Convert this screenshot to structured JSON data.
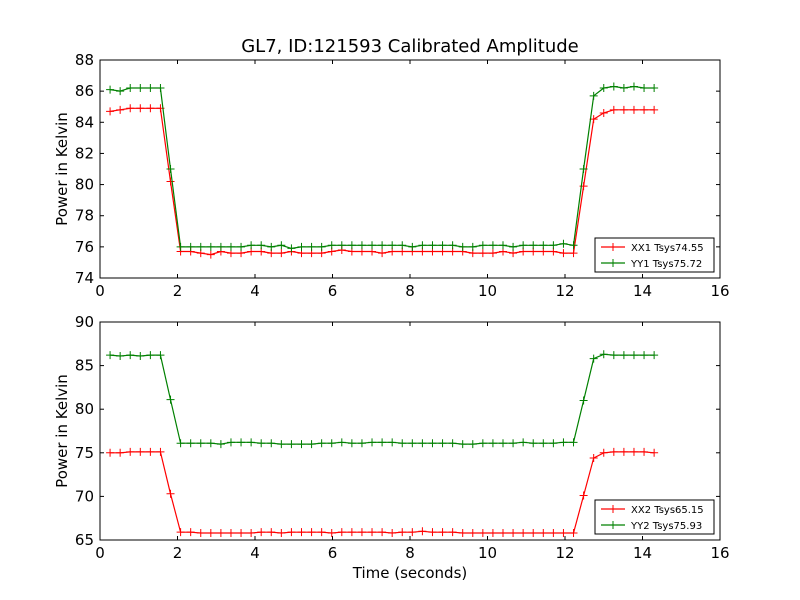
{
  "figure_title": "GL7, ID:121593 Calibrated Amplitude",
  "chart_data": [
    {
      "type": "line",
      "title": "GL7, ID:121593 Calibrated Amplitude",
      "xlabel": "",
      "ylabel": "Power in Kelvin",
      "xlim": [
        0,
        16
      ],
      "ylim": [
        74,
        88
      ],
      "xticks": [
        "0",
        "2",
        "4",
        "6",
        "8",
        "10",
        "12",
        "14",
        "16"
      ],
      "yticks": [
        "74",
        "76",
        "78",
        "80",
        "82",
        "84",
        "86",
        "88"
      ],
      "grid": false,
      "legend": "lower-right",
      "x": [
        0.26,
        0.52,
        0.78,
        1.04,
        1.3,
        1.56,
        1.82,
        2.08,
        2.34,
        2.6,
        2.86,
        3.12,
        3.38,
        3.64,
        3.9,
        4.16,
        4.42,
        4.68,
        4.94,
        5.2,
        5.46,
        5.72,
        5.98,
        6.24,
        6.5,
        6.76,
        7.02,
        7.28,
        7.54,
        7.8,
        8.06,
        8.32,
        8.58,
        8.84,
        9.1,
        9.36,
        9.62,
        9.88,
        10.14,
        10.4,
        10.66,
        10.92,
        11.18,
        11.44,
        11.7,
        11.96,
        12.22,
        12.48,
        12.74,
        13.0,
        13.26,
        13.52,
        13.78,
        14.04,
        14.3
      ],
      "series": [
        {
          "name": "XX1 Tsys74.55",
          "color": "#ff0000",
          "values": [
            84.7,
            84.8,
            84.9,
            84.9,
            84.9,
            84.9,
            80.2,
            75.7,
            75.7,
            75.6,
            75.5,
            75.7,
            75.6,
            75.6,
            75.7,
            75.7,
            75.6,
            75.6,
            75.7,
            75.6,
            75.6,
            75.6,
            75.7,
            75.8,
            75.7,
            75.7,
            75.7,
            75.6,
            75.7,
            75.7,
            75.7,
            75.7,
            75.7,
            75.7,
            75.7,
            75.7,
            75.6,
            75.6,
            75.6,
            75.7,
            75.6,
            75.7,
            75.7,
            75.7,
            75.7,
            75.6,
            75.6,
            79.9,
            84.2,
            84.6,
            84.8,
            84.8,
            84.8,
            84.8,
            84.8
          ]
        },
        {
          "name": "YY1 Tsys75.72",
          "color": "#008000",
          "values": [
            86.1,
            86.0,
            86.2,
            86.2,
            86.2,
            86.2,
            81.0,
            76.0,
            76.0,
            76.0,
            76.0,
            76.0,
            76.0,
            76.0,
            76.1,
            76.1,
            76.0,
            76.1,
            75.9,
            76.0,
            76.0,
            76.0,
            76.1,
            76.1,
            76.1,
            76.1,
            76.1,
            76.1,
            76.1,
            76.1,
            76.0,
            76.1,
            76.1,
            76.1,
            76.1,
            76.0,
            76.0,
            76.1,
            76.1,
            76.1,
            76.0,
            76.1,
            76.1,
            76.1,
            76.1,
            76.2,
            76.1,
            81.0,
            85.7,
            86.2,
            86.3,
            86.2,
            86.3,
            86.2,
            86.2
          ]
        }
      ]
    },
    {
      "type": "line",
      "title": "",
      "xlabel": "Time (seconds)",
      "ylabel": "Power in Kelvin",
      "xlim": [
        0,
        16
      ],
      "ylim": [
        65,
        90
      ],
      "xticks": [
        "0",
        "2",
        "4",
        "6",
        "8",
        "10",
        "12",
        "14",
        "16"
      ],
      "yticks": [
        "65",
        "70",
        "75",
        "80",
        "85",
        "90"
      ],
      "grid": false,
      "legend": "lower-right",
      "x": [
        0.26,
        0.52,
        0.78,
        1.04,
        1.3,
        1.56,
        1.82,
        2.08,
        2.34,
        2.6,
        2.86,
        3.12,
        3.38,
        3.64,
        3.9,
        4.16,
        4.42,
        4.68,
        4.94,
        5.2,
        5.46,
        5.72,
        5.98,
        6.24,
        6.5,
        6.76,
        7.02,
        7.28,
        7.54,
        7.8,
        8.06,
        8.32,
        8.58,
        8.84,
        9.1,
        9.36,
        9.62,
        9.88,
        10.14,
        10.4,
        10.66,
        10.92,
        11.18,
        11.44,
        11.7,
        11.96,
        12.22,
        12.48,
        12.74,
        13.0,
        13.26,
        13.52,
        13.78,
        14.04,
        14.3
      ],
      "series": [
        {
          "name": "XX2 Tsys65.15",
          "color": "#ff0000",
          "values": [
            75.0,
            75.0,
            75.1,
            75.1,
            75.1,
            75.1,
            70.3,
            65.9,
            65.9,
            65.8,
            65.8,
            65.8,
            65.8,
            65.8,
            65.8,
            65.9,
            65.9,
            65.8,
            65.9,
            65.9,
            65.9,
            65.9,
            65.8,
            65.9,
            65.9,
            65.9,
            65.9,
            65.9,
            65.8,
            65.9,
            65.9,
            66.0,
            65.9,
            65.9,
            65.9,
            65.8,
            65.8,
            65.8,
            65.8,
            65.8,
            65.8,
            65.8,
            65.8,
            65.8,
            65.8,
            65.8,
            65.8,
            70.1,
            74.4,
            75.0,
            75.1,
            75.1,
            75.1,
            75.1,
            75.0
          ]
        },
        {
          "name": "YY2 Tsys75.93",
          "color": "#008000",
          "values": [
            86.2,
            86.1,
            86.2,
            86.1,
            86.2,
            86.2,
            81.1,
            76.1,
            76.1,
            76.1,
            76.1,
            76.0,
            76.2,
            76.2,
            76.2,
            76.1,
            76.1,
            76.0,
            76.0,
            76.0,
            76.0,
            76.1,
            76.1,
            76.2,
            76.1,
            76.1,
            76.2,
            76.2,
            76.2,
            76.1,
            76.1,
            76.1,
            76.1,
            76.1,
            76.1,
            76.0,
            76.0,
            76.1,
            76.1,
            76.1,
            76.1,
            76.2,
            76.1,
            76.1,
            76.1,
            76.2,
            76.2,
            81.0,
            85.8,
            86.3,
            86.2,
            86.2,
            86.2,
            86.2,
            86.2
          ]
        }
      ]
    }
  ]
}
